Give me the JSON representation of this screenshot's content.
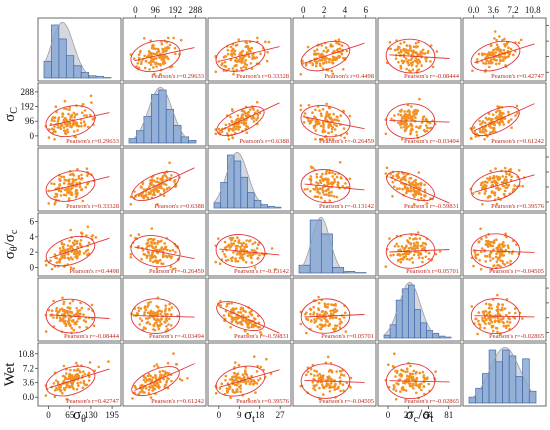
{
  "chart_data": {
    "type": "scatter_matrix",
    "variables": [
      {
        "label": "σθ",
        "display_main": "σ",
        "display_sub": "θ",
        "ticks": [
          0,
          65,
          130,
          195
        ],
        "tick_labels": [
          "0",
          "65",
          "130",
          "195"
        ],
        "range": [
          -20,
          210
        ]
      },
      {
        "label": "σc",
        "display_main": "σ",
        "display_sub": "C",
        "ticks": [
          0,
          96,
          192,
          288
        ],
        "tick_labels": [
          "0",
          "96",
          "192",
          "288"
        ],
        "range": [
          -40,
          320
        ]
      },
      {
        "label": "σt",
        "display_main": "σ",
        "display_sub": "t",
        "ticks": [
          0,
          9,
          18,
          27
        ],
        "tick_labels": [
          "0",
          "9",
          "18",
          "27"
        ],
        "range": [
          -3,
          30
        ]
      },
      {
        "label": "σθ/σc",
        "display_main": "σ",
        "display_sub": "θ",
        "display_suffix": "/σ",
        "display_sub2": "c",
        "ticks": [
          0,
          2,
          4,
          6
        ],
        "tick_labels": [
          "0",
          "2",
          "4",
          "6"
        ],
        "range": [
          -0.6,
          6.6
        ]
      },
      {
        "label": "σc/σt",
        "display_main": "σ",
        "display_sub": "c",
        "display_suffix": "/σ",
        "display_sub2": "t",
        "ticks": [
          0,
          27,
          54,
          81
        ],
        "tick_labels": [
          "0",
          "27",
          "54",
          "81"
        ],
        "range": [
          -8,
          92
        ]
      },
      {
        "label": "Wet",
        "display_main": "Wet",
        "display_sub": "",
        "ticks": [
          0,
          3.6,
          7.2,
          10.8
        ],
        "tick_labels": [
          "0.0",
          "3.6",
          "7.2",
          "10.8"
        ],
        "range": [
          -1.2,
          12.5
        ]
      }
    ],
    "correlations": [
      {
        "pair": [
          "σθ",
          "σc"
        ],
        "r_label": "Pearson's r=0.29633"
      },
      {
        "pair": [
          "σθ",
          "σt"
        ],
        "r_label": "Pearson's r=0.33328"
      },
      {
        "pair": [
          "σθ",
          "σθ/σc"
        ],
        "r_label": "Pearson's r=0.4498"
      },
      {
        "pair": [
          "σθ",
          "σc/σt"
        ],
        "r_label": "Pearson's r=-0.08444"
      },
      {
        "pair": [
          "σθ",
          "Wet"
        ],
        "r_label": "Pearson's r=0.42747"
      },
      {
        "pair": [
          "σc",
          "σt"
        ],
        "r_label": "Pearson's r=0.6388"
      },
      {
        "pair": [
          "σc",
          "σθ/σc"
        ],
        "r_label": "Pearson's r=-0.26459"
      },
      {
        "pair": [
          "σc",
          "σc/σt"
        ],
        "r_label": "Pearson's r=-0.03494"
      },
      {
        "pair": [
          "σc",
          "Wet"
        ],
        "r_label": "Pearson's r=0.61242"
      },
      {
        "pair": [
          "σt",
          "σθ/σc"
        ],
        "r_label": "Pearson's r=-0.13142"
      },
      {
        "pair": [
          "σt",
          "σc/σt"
        ],
        "r_label": "Pearson's r=-0.59831"
      },
      {
        "pair": [
          "σt",
          "Wet"
        ],
        "r_label": "Pearson's r=0.39576"
      },
      {
        "pair": [
          "σθ/σc",
          "σc/σt"
        ],
        "r_label": "Pearson's r=0.05701"
      },
      {
        "pair": [
          "σθ/σc",
          "Wet"
        ],
        "r_label": "Pearson's r=-0.04505"
      },
      {
        "pair": [
          "σc/σt",
          "Wet"
        ],
        "r_label": "Pearson's r=-0.02865"
      }
    ],
    "histograms": [
      {
        "var": "σθ",
        "bins": [
          0,
          20,
          40,
          60,
          80,
          100,
          120,
          140,
          160,
          180
        ],
        "counts": [
          30,
          95,
          70,
          40,
          22,
          10,
          4,
          3,
          1
        ]
      },
      {
        "var": "σc",
        "bins": [
          0,
          32,
          64,
          96,
          128,
          160,
          192,
          224,
          256,
          288
        ],
        "counts": [
          5,
          14,
          30,
          55,
          60,
          38,
          20,
          7,
          3
        ]
      },
      {
        "var": "σt",
        "bins": [
          0,
          2,
          4,
          6,
          8,
          10,
          12,
          14,
          16,
          18,
          20
        ],
        "counts": [
          6,
          30,
          62,
          55,
          36,
          18,
          9,
          4,
          2,
          1
        ]
      },
      {
        "var": "σθ/σc",
        "bins": [
          0,
          0.5,
          1,
          1.5,
          2,
          2.5,
          3
        ],
        "counts": [
          14,
          95,
          70,
          10,
          3,
          1
        ]
      },
      {
        "var": "σc/σt",
        "bins": [
          0,
          7,
          14,
          21,
          28,
          35,
          42,
          49,
          56,
          63,
          70,
          77
        ],
        "counts": [
          3,
          14,
          40,
          52,
          56,
          30,
          16,
          8,
          5,
          2,
          1
        ]
      },
      {
        "var": "Wet",
        "bins": [
          0,
          1.2,
          2.4,
          3.6,
          4.8,
          6.0,
          7.2,
          8.4,
          9.6,
          10.8,
          12.0
        ],
        "counts": [
          4,
          10,
          20,
          36,
          28,
          36,
          32,
          18,
          30,
          8
        ]
      }
    ],
    "colors": {
      "points": "#f39224",
      "ellipse": "#e2363a",
      "fit_line": "#e2363a",
      "hist_bar": "#8aa9d6",
      "hist_edge": "#3f67a8",
      "density": "#b3b8c2",
      "r_label": "#c0281d"
    },
    "grid": false,
    "legend": "none"
  }
}
